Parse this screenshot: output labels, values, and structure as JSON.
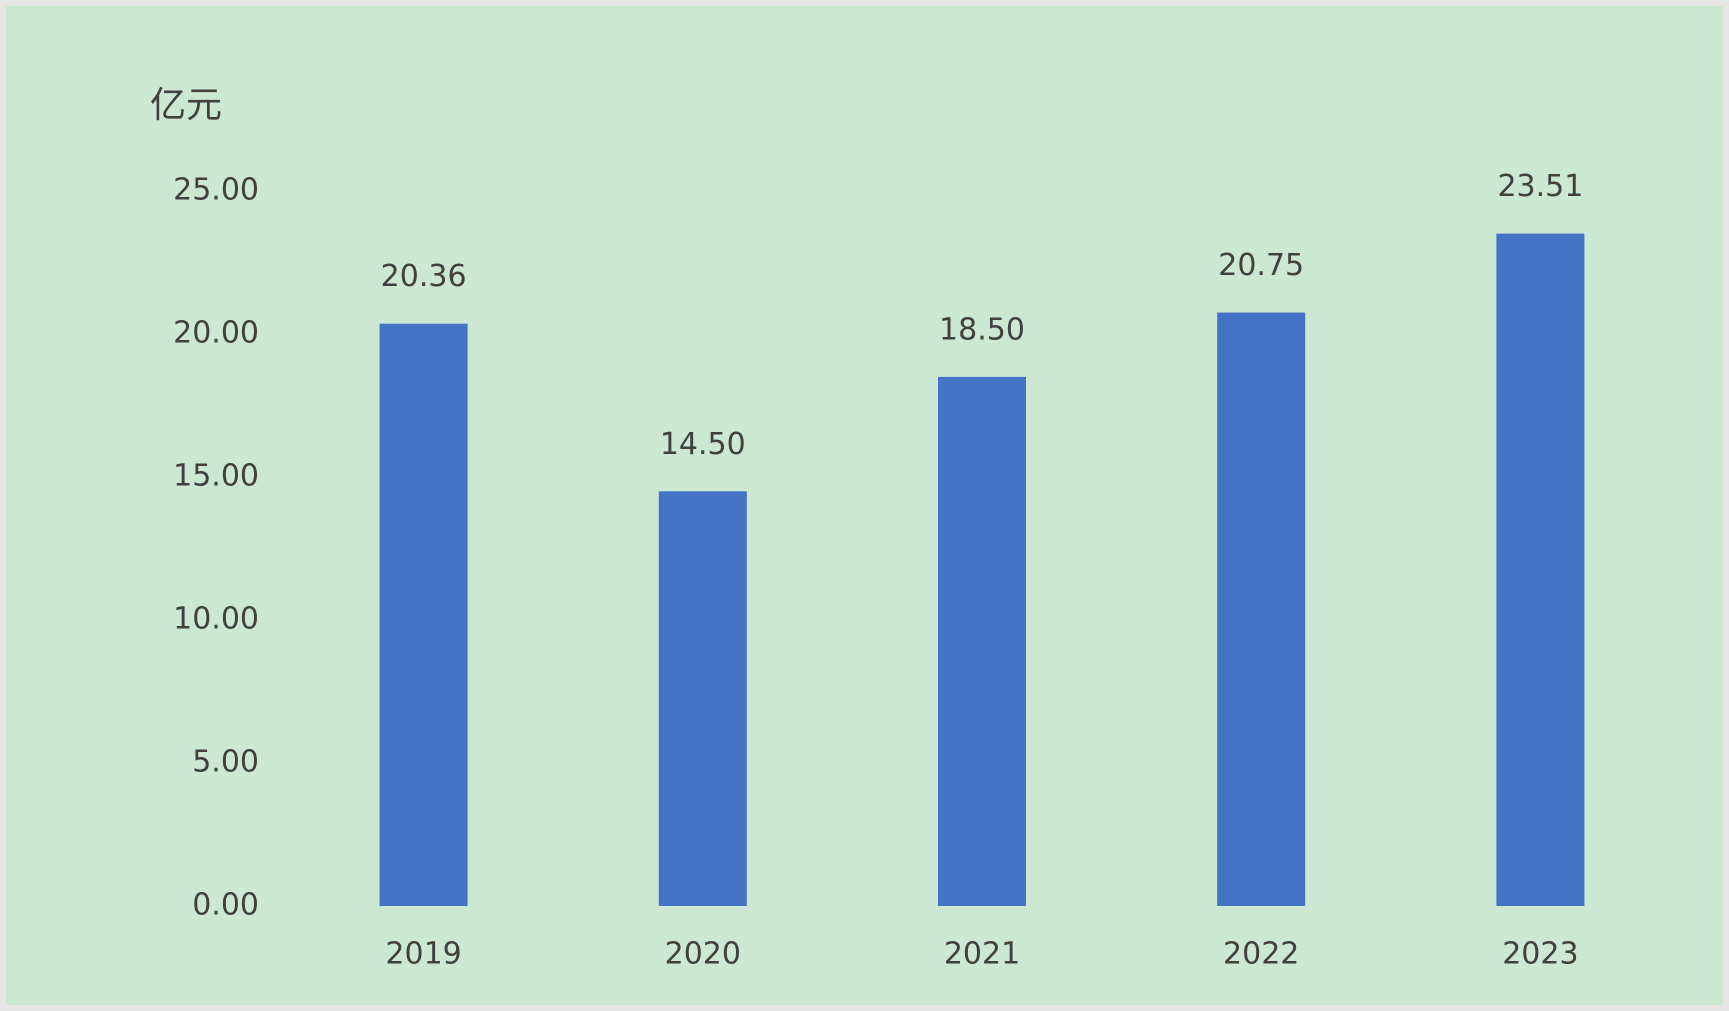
{
  "chart_data": {
    "type": "bar",
    "y_label": "亿元",
    "categories": [
      "2019",
      "2020",
      "2021",
      "2022",
      "2023"
    ],
    "values": [
      20.36,
      14.5,
      18.5,
      20.75,
      23.51
    ],
    "value_labels": [
      "20.36",
      "14.50",
      "18.50",
      "20.75",
      "23.51"
    ],
    "color": "#4472c4",
    "ylim": [
      0,
      25
    ],
    "yticks": [
      {
        "value": 0,
        "label": "0.00"
      },
      {
        "value": 5,
        "label": "5.00"
      },
      {
        "value": 10,
        "label": "10.00"
      },
      {
        "value": 15,
        "label": "15.00"
      },
      {
        "value": 20,
        "label": "20.00"
      },
      {
        "value": 25,
        "label": "25.00"
      }
    ],
    "grid": false
  }
}
